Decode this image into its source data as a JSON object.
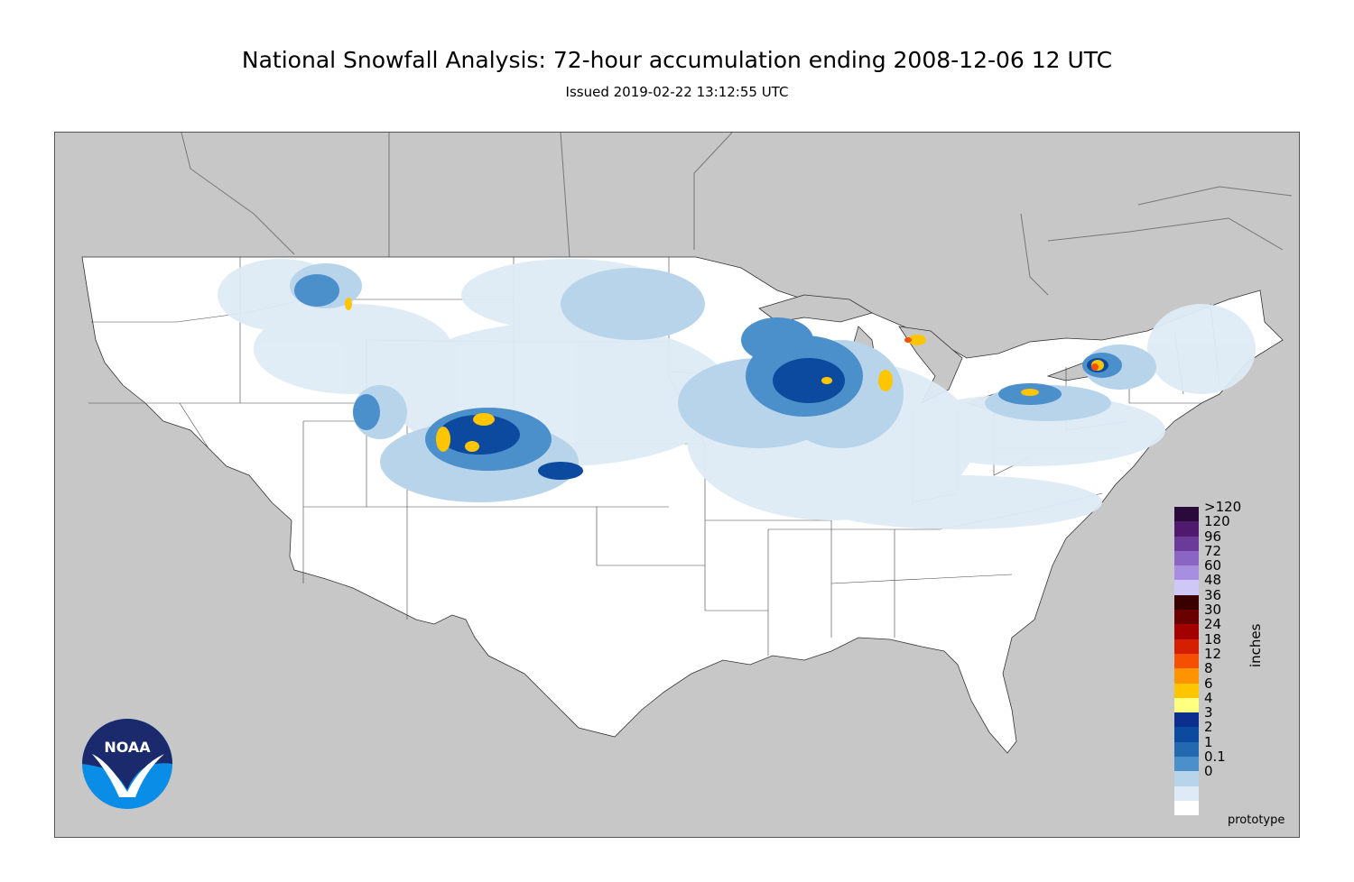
{
  "header": {
    "title": "National Snowfall Analysis: 72-hour accumulation ending 2008-12-06 12 UTC",
    "subtitle": "Issued 2019-02-22 13:12:55 UTC"
  },
  "legend": {
    "units": "inches",
    "entries": [
      {
        "label": ">120",
        "color": "#2a0a3a"
      },
      {
        "label": "120",
        "color": "#4f1a6e"
      },
      {
        "label": "96",
        "color": "#6c3b99"
      },
      {
        "label": "72",
        "color": "#8b65c4"
      },
      {
        "label": "60",
        "color": "#a88ee0"
      },
      {
        "label": "48",
        "color": "#cfc8f7"
      },
      {
        "label": "36",
        "color": "#3a0000"
      },
      {
        "label": "30",
        "color": "#6b0000"
      },
      {
        "label": "24",
        "color": "#a30000"
      },
      {
        "label": "18",
        "color": "#d42000"
      },
      {
        "label": "12",
        "color": "#f55000"
      },
      {
        "label": "8",
        "color": "#ff9300"
      },
      {
        "label": "6",
        "color": "#ffc600"
      },
      {
        "label": "4",
        "color": "#ffff80"
      },
      {
        "label": "3",
        "color": "#0b2e8f"
      },
      {
        "label": "2",
        "color": "#0c4aa0"
      },
      {
        "label": "1",
        "color": "#2369b0"
      },
      {
        "label": "0.1",
        "color": "#4b8fcb"
      },
      {
        "label": "0",
        "color": "#b8d4ea"
      }
    ],
    "extra_swatches": [
      "#deebf6",
      "#ffffff"
    ]
  },
  "footer": {
    "watermark": "prototype",
    "logo_text": "NOAA"
  },
  "colors": {
    "ocean_land_outside": "#c7c7c7",
    "conus_fill": "#ffffff",
    "border": "#555555"
  }
}
